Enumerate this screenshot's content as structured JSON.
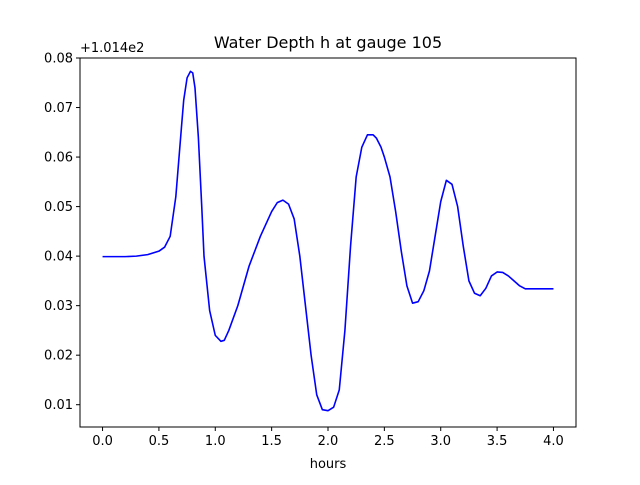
{
  "chart_data": {
    "type": "line",
    "title": "Water Depth h at gauge 105",
    "xlabel": "hours",
    "ylabel": "",
    "y_offset_text": "+1.014e2",
    "xlim": [
      -0.2,
      4.2
    ],
    "ylim": [
      0.0055,
      0.08
    ],
    "x_ticks": [
      0.0,
      0.5,
      1.0,
      1.5,
      2.0,
      2.5,
      3.0,
      3.5,
      4.0
    ],
    "x_tick_labels": [
      "0.0",
      "0.5",
      "1.0",
      "1.5",
      "2.0",
      "2.5",
      "3.0",
      "3.5",
      "4.0"
    ],
    "y_ticks": [
      0.01,
      0.02,
      0.03,
      0.04,
      0.05,
      0.06,
      0.07,
      0.08
    ],
    "y_tick_labels": [
      "0.01",
      "0.02",
      "0.03",
      "0.04",
      "0.05",
      "0.06",
      "0.07",
      "0.08"
    ],
    "grid": false,
    "series": [
      {
        "color": "#0000ff",
        "x": [
          0.0,
          0.1,
          0.2,
          0.3,
          0.4,
          0.5,
          0.55,
          0.6,
          0.65,
          0.7,
          0.72,
          0.75,
          0.78,
          0.8,
          0.82,
          0.85,
          0.88,
          0.9,
          0.95,
          1.0,
          1.05,
          1.08,
          1.12,
          1.2,
          1.3,
          1.4,
          1.5,
          1.55,
          1.6,
          1.65,
          1.7,
          1.75,
          1.8,
          1.85,
          1.9,
          1.95,
          2.0,
          2.05,
          2.1,
          2.15,
          2.2,
          2.25,
          2.3,
          2.35,
          2.4,
          2.43,
          2.47,
          2.5,
          2.55,
          2.6,
          2.65,
          2.7,
          2.75,
          2.8,
          2.85,
          2.9,
          2.95,
          3.0,
          3.05,
          3.1,
          3.15,
          3.2,
          3.25,
          3.3,
          3.35,
          3.4,
          3.45,
          3.5,
          3.55,
          3.6,
          3.65,
          3.7,
          3.75,
          3.8,
          3.85,
          3.9,
          3.95,
          4.0
        ],
        "y": [
          0.0399,
          0.0399,
          0.0399,
          0.04,
          0.0403,
          0.041,
          0.0418,
          0.044,
          0.052,
          0.066,
          0.0715,
          0.076,
          0.0773,
          0.077,
          0.074,
          0.064,
          0.05,
          0.04,
          0.029,
          0.024,
          0.0228,
          0.023,
          0.025,
          0.03,
          0.038,
          0.044,
          0.049,
          0.0508,
          0.0513,
          0.0505,
          0.0475,
          0.04,
          0.03,
          0.02,
          0.012,
          0.009,
          0.0088,
          0.0095,
          0.013,
          0.025,
          0.042,
          0.056,
          0.062,
          0.0645,
          0.0645,
          0.0638,
          0.062,
          0.06,
          0.056,
          0.049,
          0.041,
          0.034,
          0.0305,
          0.0308,
          0.033,
          0.037,
          0.044,
          0.051,
          0.0553,
          0.0545,
          0.05,
          0.042,
          0.035,
          0.0325,
          0.032,
          0.0335,
          0.036,
          0.0368,
          0.0367,
          0.036,
          0.035,
          0.034,
          0.0334,
          0.0334,
          0.0334,
          0.0334,
          0.0334,
          0.0334
        ]
      }
    ]
  }
}
